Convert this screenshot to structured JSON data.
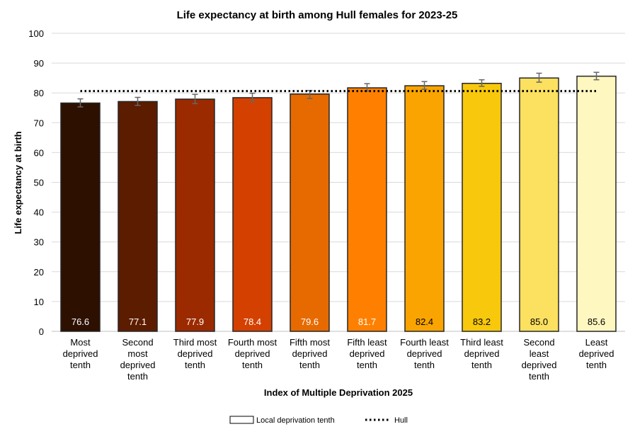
{
  "chart_data": {
    "type": "bar",
    "title": "Life expectancy at birth among Hull females for 2023-25",
    "xlabel": "Index of Multiple Deprivation 2025",
    "ylabel": "Life expectancy at birth",
    "ylim": [
      0,
      100
    ],
    "yticks": [
      0,
      10,
      20,
      30,
      40,
      50,
      60,
      70,
      80,
      90,
      100
    ],
    "grid": true,
    "categories": [
      [
        "Most",
        "deprived",
        "tenth"
      ],
      [
        "Second",
        "most",
        "deprived",
        "tenth"
      ],
      [
        "Third most",
        "deprived",
        "tenth"
      ],
      [
        "Fourth most",
        "deprived",
        "tenth"
      ],
      [
        "Fifth most",
        "deprived",
        "tenth"
      ],
      [
        "Fifth least",
        "deprived",
        "tenth"
      ],
      [
        "Fourth least",
        "deprived",
        "tenth"
      ],
      [
        "Third least",
        "deprived",
        "tenth"
      ],
      [
        "Second",
        "least",
        "deprived",
        "tenth"
      ],
      [
        "Least",
        "deprived",
        "tenth"
      ]
    ],
    "series": [
      {
        "name": "Local deprivation tenth",
        "values": [
          76.6,
          77.1,
          77.9,
          78.4,
          79.6,
          81.7,
          82.4,
          83.2,
          85.0,
          85.6
        ],
        "labels": [
          "76.6",
          "77.1",
          "77.9",
          "78.4",
          "79.6",
          "81.7",
          "82.4",
          "83.2",
          "85.0",
          "85.6"
        ],
        "ci_lower": [
          75.3,
          75.8,
          76.4,
          77.0,
          78.1,
          80.6,
          81.2,
          82.2,
          83.6,
          84.4
        ],
        "ci_upper": [
          78.0,
          78.5,
          79.5,
          79.9,
          80.8,
          83.1,
          83.8,
          84.4,
          86.6,
          86.9
        ],
        "colors": [
          "#2d1000",
          "#5c1c00",
          "#9b2a00",
          "#d44000",
          "#e66a00",
          "#ff8000",
          "#f9a400",
          "#f8c80c",
          "#fce060",
          "#fff7c0"
        ],
        "label_colors": [
          "#ffffff",
          "#ffffff",
          "#ffffff",
          "#ffffff",
          "#ffffff",
          "#ffffff",
          "#000000",
          "#000000",
          "#000000",
          "#000000"
        ]
      },
      {
        "name": "Hull",
        "type": "line",
        "style": "dotted",
        "value": 80.6,
        "color": "#000000"
      }
    ],
    "legend": "bottom"
  }
}
